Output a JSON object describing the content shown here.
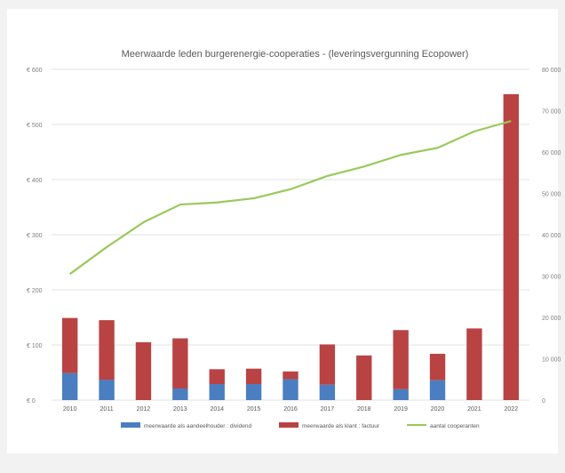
{
  "chart_data": {
    "type": "bar",
    "title": "Meerwaarde leden burgerenergie-cooperaties - (leveringsvergunning Ecopower)",
    "categories": [
      "2010",
      "2011",
      "2012",
      "2013",
      "2014",
      "2015",
      "2016",
      "2017",
      "2018",
      "2019",
      "2020",
      "2021",
      "2022"
    ],
    "stacked": true,
    "series": [
      {
        "name": "meerwaarde als aandeelhouder : dividend",
        "axis": "left",
        "color": "#4a7ec0",
        "values": [
          49,
          37,
          0,
          21,
          29,
          29,
          38,
          28,
          0,
          20,
          36,
          0,
          0
        ]
      },
      {
        "name": "meerwaarde als klant : factuur",
        "axis": "left",
        "color": "#b94343",
        "values": [
          100,
          108,
          105,
          91,
          27,
          28,
          14,
          73,
          81,
          107,
          48,
          130,
          555
        ]
      },
      {
        "name": "aantal cooperanten",
        "axis": "right",
        "type": "line",
        "color": "#99c95a",
        "values": [
          30500,
          37000,
          43000,
          47300,
          47800,
          48800,
          51000,
          54200,
          56500,
          59300,
          61000,
          65000,
          67500
        ]
      }
    ],
    "y_left": {
      "min": 0,
      "max": 600,
      "step": 100,
      "ticks": [
        "€ 0",
        "€ 100",
        "€ 200",
        "€ 300",
        "€ 400",
        "€ 500",
        "€ 600"
      ]
    },
    "y_right": {
      "min": 0,
      "max": 80000,
      "step": 10000,
      "ticks": [
        "0",
        "10 000",
        "20 000",
        "30 000",
        "40 000",
        "50 000",
        "60 000",
        "70 000",
        "80 000"
      ]
    },
    "grid": true,
    "legend_position": "bottom"
  }
}
